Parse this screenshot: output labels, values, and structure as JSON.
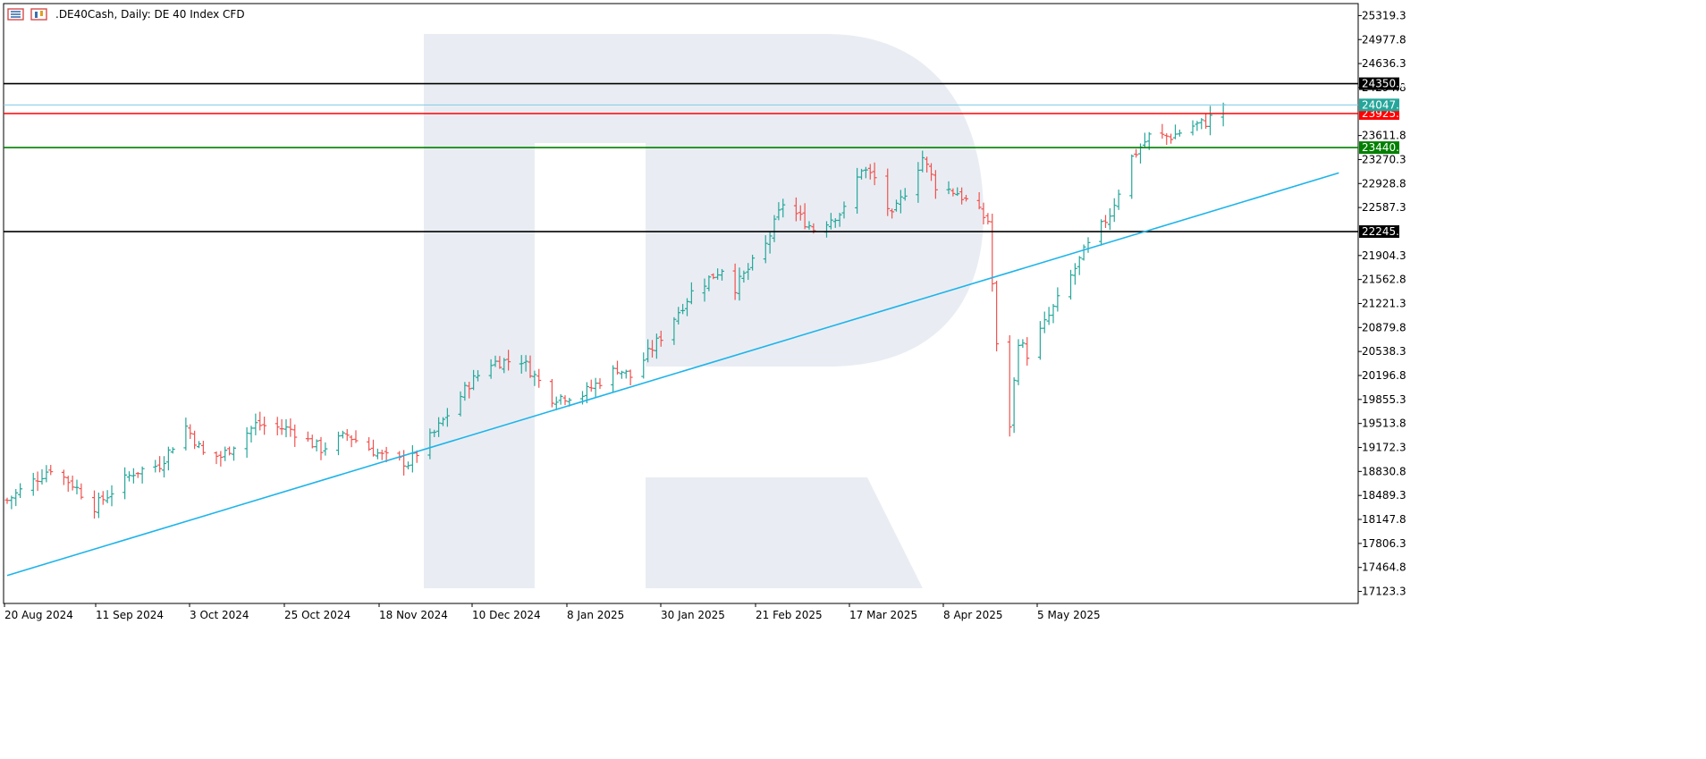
{
  "header": {
    "symbol": ".DE40Cash",
    "timeframe": "Daily",
    "description": "DE 40 Index CFD",
    "title_text": ".DE40Cash, Daily:  DE 40 Index CFD",
    "icons": [
      "bars-chart-icon",
      "candles-chart-icon"
    ]
  },
  "colors": {
    "bull": "#26a69a",
    "bear": "#ef5350",
    "trendline": "#1eb4ea",
    "current_price_line": "#7fc9e6",
    "level_black": "#000000",
    "level_red": "#ff0000",
    "level_green": "#008000",
    "watermark": "#e9edf3"
  },
  "chart_data": {
    "type": "candlestick",
    "title": ".DE40Cash, Daily:  DE 40 Index CFD",
    "y_range": [
      16952,
      25490
    ],
    "y_ticks": [
      "25319.3",
      "24977.8",
      "24636.3",
      "24294.8",
      "23611.8",
      "23270.3",
      "22928.8",
      "22587.3",
      "21904.3",
      "21562.8",
      "21221.3",
      "20879.8",
      "20538.3",
      "20196.8",
      "19855.3",
      "19513.8",
      "19172.3",
      "18830.8",
      "18489.3",
      "18147.8",
      "17806.3",
      "17464.8",
      "17123.3"
    ],
    "x_labels": [
      "20 Aug 2024",
      "11 Sep 2024",
      "3 Oct 2024",
      "25 Oct 2024",
      "18 Nov 2024",
      "10 Dec 2024",
      "8 Jan 2025",
      "30 Jan 2025",
      "21 Feb 2025",
      "17 Mar 2025",
      "8 Apr 2025",
      "5 May 2025"
    ],
    "horizontal_levels": [
      {
        "price": 24350.0,
        "label": "24350.0",
        "role": "black"
      },
      {
        "price": 23925.0,
        "label": "23925.0",
        "role": "red"
      },
      {
        "price": 23440.0,
        "label": "23440.0",
        "role": "green"
      },
      {
        "price": 22245.0,
        "label": "22245.0",
        "role": "black"
      }
    ],
    "current_price": {
      "price": 24047.7,
      "label": "24047.7"
    },
    "trendline": {
      "from": {
        "date": "2024-08-20",
        "price": 17350
      },
      "to": {
        "date": "2025-06-01",
        "price": 23080
      }
    },
    "anchor_points": [
      {
        "date": "2024-08-20",
        "price": 18420
      },
      {
        "date": "2024-08-30",
        "price": 18880
      },
      {
        "date": "2024-09-04",
        "price": 18650
      },
      {
        "date": "2024-09-09",
        "price": 18330
      },
      {
        "date": "2024-09-18",
        "price": 18820
      },
      {
        "date": "2024-09-24",
        "price": 18930
      },
      {
        "date": "2024-09-30",
        "price": 19470
      },
      {
        "date": "2024-10-04",
        "price": 19080
      },
      {
        "date": "2024-10-08",
        "price": 19040
      },
      {
        "date": "2024-10-16",
        "price": 19500
      },
      {
        "date": "2024-10-24",
        "price": 19430
      },
      {
        "date": "2024-10-31",
        "price": 19150
      },
      {
        "date": "2024-11-06",
        "price": 19350
      },
      {
        "date": "2024-11-14",
        "price": 19050
      },
      {
        "date": "2024-11-20",
        "price": 18950
      },
      {
        "date": "2024-11-26",
        "price": 19380
      },
      {
        "date": "2024-12-04",
        "price": 20080
      },
      {
        "date": "2024-12-09",
        "price": 20380
      },
      {
        "date": "2024-12-16",
        "price": 20420
      },
      {
        "date": "2024-12-23",
        "price": 19880
      },
      {
        "date": "2024-12-30",
        "price": 19930
      },
      {
        "date": "2025-01-07",
        "price": 20300
      },
      {
        "date": "2025-01-10",
        "price": 20180
      },
      {
        "date": "2025-01-17",
        "price": 20750
      },
      {
        "date": "2025-01-24",
        "price": 21380
      },
      {
        "date": "2025-01-31",
        "price": 21720
      },
      {
        "date": "2025-02-03",
        "price": 21450
      },
      {
        "date": "2025-02-10",
        "price": 22050
      },
      {
        "date": "2025-02-14",
        "price": 22650
      },
      {
        "date": "2025-02-21",
        "price": 22280
      },
      {
        "date": "2025-02-28",
        "price": 22550
      },
      {
        "date": "2025-03-04",
        "price": 23150
      },
      {
        "date": "2025-03-07",
        "price": 23000
      },
      {
        "date": "2025-03-11",
        "price": 22450
      },
      {
        "date": "2025-03-18",
        "price": 23300
      },
      {
        "date": "2025-03-21",
        "price": 22900
      },
      {
        "date": "2025-03-26",
        "price": 22800
      },
      {
        "date": "2025-04-02",
        "price": 22400
      },
      {
        "date": "2025-04-04",
        "price": 20600
      },
      {
        "date": "2025-04-07",
        "price": 19500
      },
      {
        "date": "2025-04-09",
        "price": 20700
      },
      {
        "date": "2025-04-11",
        "price": 20500
      },
      {
        "date": "2025-04-17",
        "price": 21150
      },
      {
        "date": "2025-04-24",
        "price": 21950
      },
      {
        "date": "2025-04-30",
        "price": 22500
      },
      {
        "date": "2025-05-05",
        "price": 23300
      },
      {
        "date": "2025-05-09",
        "price": 23600
      },
      {
        "date": "2025-05-14",
        "price": 23600
      },
      {
        "date": "2025-05-19",
        "price": 23750
      },
      {
        "date": "2025-05-22",
        "price": 23800
      },
      {
        "date": "2025-05-26",
        "price": 24047.7
      }
    ]
  }
}
